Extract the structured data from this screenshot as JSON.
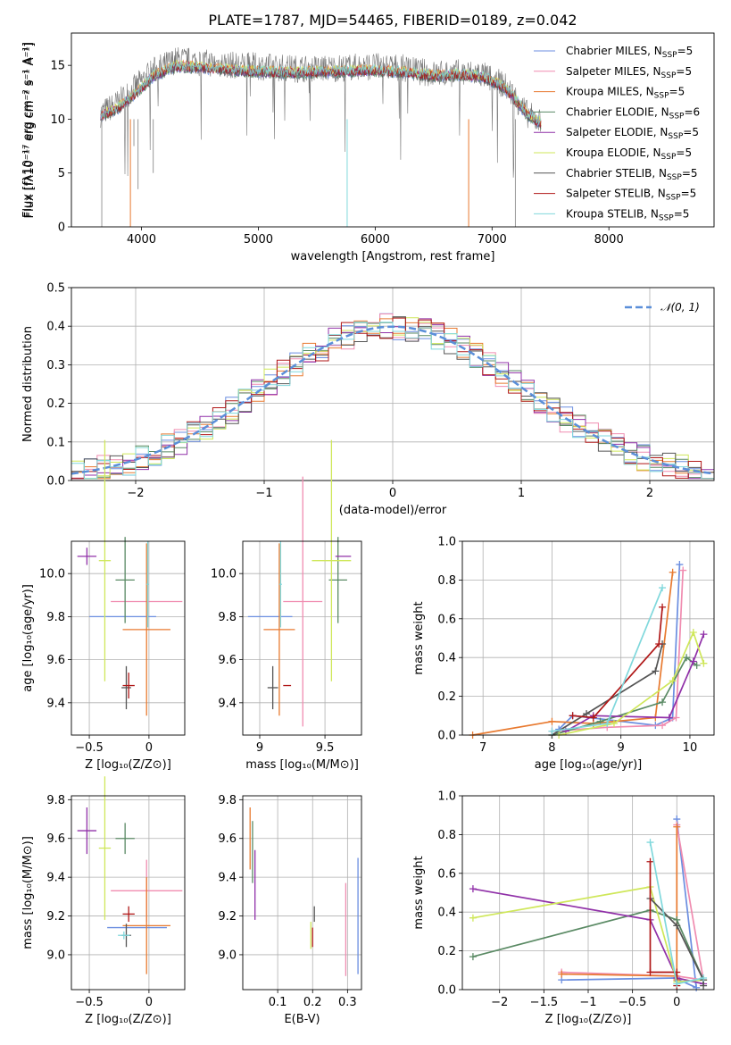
{
  "figure_title": "PLATE=1787, MJD=54465, FIBERID=0189, z=0.042",
  "colors": [
    "#6b8ee0",
    "#f08cb0",
    "#e87a30",
    "#5a8a64",
    "#9030a8",
    "#cfe75a",
    "#555555",
    "#b01818",
    "#80d8dc"
  ],
  "models": [
    {
      "label": "Chabrier MILES, N",
      "n": "5"
    },
    {
      "label": "Salpeter MILES, N",
      "n": "5"
    },
    {
      "label": "Kroupa MILES, N",
      "n": "5"
    },
    {
      "label": "Chabrier ELODIE, N",
      "n": "6"
    },
    {
      "label": "Salpeter ELODIE, N",
      "n": "5"
    },
    {
      "label": "Kroupa ELODIE, N",
      "n": "5"
    },
    {
      "label": "Chabrier STELIB, N",
      "n": "5"
    },
    {
      "label": "Salpeter STELIB, N",
      "n": "5"
    },
    {
      "label": "Kroupa STELIB, N",
      "n": "5"
    }
  ],
  "ssp_subscript": "SSP",
  "chart_data": [
    {
      "id": "spectrum",
      "type": "line",
      "title": "PLATE=1787, MJD=54465, FIBERID=0189, z=0.042",
      "xlabel": "wavelength [Angstrom, rest frame]",
      "ylabel": "Flux [fλ10⁻¹⁷ erg cm⁻² s⁻¹ A⁻¹]",
      "xlim": [
        3400,
        8900
      ],
      "ylim": [
        0,
        18
      ],
      "xticks": [
        4000,
        5000,
        6000,
        7000,
        8000
      ],
      "yticks": [
        0,
        5,
        10,
        15
      ],
      "data_continuum_x": [
        3650,
        3800,
        3950,
        4100,
        4300,
        4500,
        4800,
        5000,
        5300,
        5600,
        5900,
        6200,
        6500,
        6700,
        6900,
        7100,
        7200,
        7300,
        7420
      ],
      "data_continuum_y": [
        10.5,
        11.5,
        13.0,
        14.5,
        15.5,
        15.3,
        15.0,
        14.9,
        14.7,
        14.7,
        14.9,
        14.8,
        14.2,
        14.3,
        14.2,
        13.2,
        12.0,
        10.5,
        9.7
      ],
      "model_continuum_x": [
        3650,
        3800,
        3950,
        4100,
        4300,
        4500,
        4800,
        5000,
        5300,
        5600,
        5900,
        6200,
        6500,
        6700,
        6900,
        7100,
        7200,
        7300,
        7420
      ],
      "model_continuum_y": [
        10.3,
        11.0,
        12.4,
        14.0,
        14.9,
        14.8,
        14.5,
        14.4,
        14.3,
        14.4,
        14.5,
        14.4,
        14.0,
        14.1,
        14.0,
        13.0,
        11.8,
        10.4,
        9.6
      ],
      "legend": "top-right"
    },
    {
      "id": "residual_hist",
      "type": "histogram",
      "xlabel": "(data-model)/error",
      "ylabel": "Normed distribution",
      "xlim": [
        -2.5,
        2.5
      ],
      "ylim": [
        0,
        0.5
      ],
      "xticks": [
        -2,
        -1,
        0,
        1,
        2
      ],
      "yticks": [
        0.0,
        0.1,
        0.2,
        0.3,
        0.4,
        0.5
      ],
      "legend_entry": "𝒩(0, 1)",
      "gaussian_color": "#5b8fd9",
      "bin_width": 0.1
    },
    {
      "id": "age_vs_Z",
      "type": "errorbar",
      "xlabel": "Z [log₁₀(Z/Z⊙)]",
      "ylabel": "age [log₁₀(age/yr)]",
      "xlim": [
        -0.65,
        0.3
      ],
      "ylim": [
        9.25,
        10.15
      ],
      "xticks": [
        -0.5,
        0.0
      ],
      "yticks": [
        9.4,
        9.6,
        9.8,
        10.0
      ],
      "points": [
        {
          "x": -0.22,
          "xe": 0.28,
          "y": 9.8,
          "ye": 0.0
        },
        {
          "x": -0.02,
          "xe": 0.3,
          "y": 9.87,
          "ye": 0.0
        },
        {
          "x": -0.02,
          "xe": 0.2,
          "y": 9.74,
          "ye": 0.4
        },
        {
          "x": -0.2,
          "xe": 0.08,
          "y": 9.97,
          "ye": 0.2
        },
        {
          "x": -0.52,
          "xe": 0.08,
          "y": 10.08,
          "ye": 0.04
        },
        {
          "x": -0.37,
          "xe": 0.05,
          "y": 10.06,
          "ye": 0.56
        },
        {
          "x": -0.19,
          "xe": 0.04,
          "y": 9.47,
          "ye": 0.1
        },
        {
          "x": -0.17,
          "xe": 0.05,
          "y": 9.48,
          "ye": 0.06
        },
        {
          "x": -0.01,
          "xe": 0.01,
          "y": 9.95,
          "ye": 0.2
        }
      ]
    },
    {
      "id": "age_vs_mass",
      "type": "errorbar",
      "xlabel": "mass [log₁₀(M/M⊙)]",
      "ylabel": "",
      "xlim": [
        8.87,
        9.78
      ],
      "ylim": [
        9.25,
        10.15
      ],
      "xticks": [
        9.0,
        9.5
      ],
      "yticks": [
        9.4,
        9.6,
        9.8,
        10.0
      ],
      "points": [
        {
          "x": 9.08,
          "xe": 0.17,
          "y": 9.8,
          "ye": 0.0
        },
        {
          "x": 9.33,
          "xe": 0.15,
          "y": 9.87,
          "ye": 0.58
        },
        {
          "x": 9.15,
          "xe": 0.12,
          "y": 9.74,
          "ye": 0.4
        },
        {
          "x": 9.6,
          "xe": 0.07,
          "y": 9.97,
          "ye": 0.2
        },
        {
          "x": 9.64,
          "xe": 0.06,
          "y": 10.08,
          "ye": 0.0
        },
        {
          "x": 9.55,
          "xe": 0.15,
          "y": 10.06,
          "ye": 0.56
        },
        {
          "x": 9.1,
          "xe": 0.04,
          "y": 9.47,
          "ye": 0.1
        },
        {
          "x": 9.21,
          "xe": 0.03,
          "y": 9.48,
          "ye": 0.0
        },
        {
          "x": 9.16,
          "xe": 0.01,
          "y": 9.95,
          "ye": 0.2
        }
      ]
    },
    {
      "id": "massweight_vs_age",
      "type": "line",
      "xlabel": "age  [log₁₀(age/yr)]",
      "ylabel": "mass weight",
      "xlim": [
        6.7,
        10.35
      ],
      "ylim": [
        0,
        1.0
      ],
      "xticks": [
        7,
        8,
        9,
        10
      ],
      "yticks": [
        0.0,
        0.2,
        0.4,
        0.6,
        0.8,
        1.0
      ],
      "series": [
        {
          "x": [
            8.1,
            8.3,
            9.5,
            9.75,
            9.85
          ],
          "y": [
            0.03,
            0.1,
            0.05,
            0.09,
            0.88
          ]
        },
        {
          "x": [
            8.0,
            8.8,
            9.6,
            9.8,
            9.9
          ],
          "y": [
            0.02,
            0.04,
            0.05,
            0.09,
            0.85
          ]
        },
        {
          "x": [
            6.85,
            8.0,
            8.6,
            9.5,
            9.75
          ],
          "y": [
            0.0,
            0.07,
            0.06,
            0.09,
            0.84
          ]
        },
        {
          "x": [
            8.0,
            8.7,
            9.6,
            9.95,
            10.1
          ],
          "y": [
            0.0,
            0.07,
            0.17,
            0.4,
            0.36
          ]
        },
        {
          "x": [
            8.2,
            8.6,
            9.7,
            10.05,
            10.2
          ],
          "y": [
            0.02,
            0.1,
            0.09,
            0.38,
            0.52
          ]
        },
        {
          "x": [
            8.1,
            8.9,
            9.75,
            10.05,
            10.2
          ],
          "y": [
            0.0,
            0.06,
            0.28,
            0.53,
            0.37
          ]
        },
        {
          "x": [
            8.0,
            8.5,
            9.5,
            9.6
          ],
          "y": [
            0.0,
            0.11,
            0.33,
            0.47
          ]
        },
        {
          "x": [
            8.3,
            8.6,
            9.55,
            9.6
          ],
          "y": [
            0.1,
            0.09,
            0.47,
            0.66
          ]
        },
        {
          "x": [
            8.0,
            8.8,
            9.6
          ],
          "y": [
            0.02,
            0.06,
            0.76
          ]
        }
      ]
    },
    {
      "id": "mass_vs_Z",
      "type": "errorbar",
      "xlabel": "Z [log₁₀(Z/Z⊙)]",
      "ylabel": "mass [log₁₀(M/M⊙)]",
      "xlim": [
        -0.65,
        0.3
      ],
      "ylim": [
        8.82,
        9.82
      ],
      "xticks": [
        -0.5,
        0.0
      ],
      "yticks": [
        9.0,
        9.2,
        9.4,
        9.6,
        9.8
      ],
      "points": [
        {
          "x": -0.1,
          "xe": 0.25,
          "y": 9.14,
          "ye": 0.0
        },
        {
          "x": -0.02,
          "xe": 0.3,
          "y": 9.33,
          "ye": 0.16
        },
        {
          "x": -0.02,
          "xe": 0.2,
          "y": 9.15,
          "ye": 0.25
        },
        {
          "x": -0.2,
          "xe": 0.08,
          "y": 9.6,
          "ye": 0.08
        },
        {
          "x": -0.52,
          "xe": 0.08,
          "y": 9.64,
          "ye": 0.12
        },
        {
          "x": -0.37,
          "xe": 0.05,
          "y": 9.55,
          "ye": 0.37
        },
        {
          "x": -0.19,
          "xe": 0.04,
          "y": 9.1,
          "ye": 0.06
        },
        {
          "x": -0.17,
          "xe": 0.05,
          "y": 9.21,
          "ye": 0.04
        },
        {
          "x": -0.21,
          "xe": 0.05,
          "y": 9.1,
          "ye": 0.02
        }
      ]
    },
    {
      "id": "mass_vs_EBV",
      "type": "errorbar",
      "xlabel": "E(B-V)",
      "ylabel": "",
      "xlim": [
        0.0,
        0.34
      ],
      "ylim": [
        8.82,
        9.82
      ],
      "xticks": [
        0.1,
        0.2,
        0.3
      ],
      "yticks": [
        9.0,
        9.2,
        9.4,
        9.6,
        9.8
      ],
      "points": [
        {
          "x": 0.33,
          "xe": 0.0,
          "y": 9.2,
          "ye": 0.3
        },
        {
          "x": 0.295,
          "xe": 0.0,
          "y": 9.13,
          "ye": 0.24
        },
        {
          "x": 0.021,
          "xe": 0.0,
          "y": 9.6,
          "ye": 0.16
        },
        {
          "x": 0.028,
          "xe": 0.0,
          "y": 9.53,
          "ye": 0.16
        },
        {
          "x": 0.035,
          "xe": 0.0,
          "y": 9.36,
          "ye": 0.18
        },
        {
          "x": 0.195,
          "xe": 0.0,
          "y": 9.1,
          "ye": 0.07
        },
        {
          "x": 0.205,
          "xe": 0.0,
          "y": 9.21,
          "ye": 0.04
        },
        {
          "x": 0.2,
          "xe": 0.0,
          "y": 9.09,
          "ye": 0.05
        }
      ]
    },
    {
      "id": "massweight_vs_Z",
      "type": "line",
      "xlabel": "Z [log₁₀(Z/Z⊙)]",
      "ylabel": "mass weight",
      "xlim": [
        -2.42,
        0.42
      ],
      "ylim": [
        0,
        1.0
      ],
      "xticks": [
        -2.0,
        -1.5,
        -1.0,
        -0.5,
        0.0
      ],
      "yticks": [
        0.0,
        0.2,
        0.4,
        0.6,
        0.8,
        1.0
      ],
      "series": [
        {
          "x": [
            -1.3,
            -0.02,
            0.22,
            0.0
          ],
          "y": [
            0.05,
            0.06,
            0.01,
            0.88
          ]
        },
        {
          "x": [
            -1.3,
            0.0,
            0.3,
            0.0
          ],
          "y": [
            0.09,
            0.07,
            0.05,
            0.85
          ]
        },
        {
          "x": [
            -1.3,
            -0.02,
            0.0,
            0.0
          ],
          "y": [
            0.08,
            0.07,
            0.05,
            0.84
          ]
        },
        {
          "x": [
            -2.3,
            -0.3,
            0.0,
            0.3
          ],
          "y": [
            0.17,
            0.41,
            0.36,
            0.05
          ]
        },
        {
          "x": [
            -2.3,
            -0.3,
            0.0,
            0.3
          ],
          "y": [
            0.52,
            0.36,
            0.06,
            0.03
          ]
        },
        {
          "x": [
            -2.3,
            -0.3,
            0.0,
            0.3
          ],
          "y": [
            0.37,
            0.53,
            0.04,
            0.05
          ]
        },
        {
          "x": [
            -0.3,
            0.0,
            0.3,
            0.3
          ],
          "y": [
            0.47,
            0.33,
            0.05,
            0.02
          ]
        },
        {
          "x": [
            -0.3,
            -0.3,
            0.0,
            0.0
          ],
          "y": [
            0.66,
            0.09,
            0.09,
            0.02
          ]
        },
        {
          "x": [
            -0.3,
            0.0,
            0.3
          ],
          "y": [
            0.76,
            0.03,
            0.06
          ]
        }
      ]
    }
  ]
}
